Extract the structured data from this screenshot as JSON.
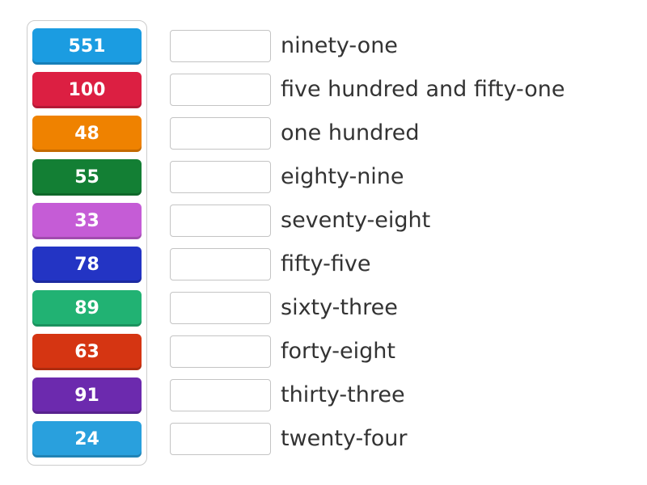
{
  "match_activity": {
    "colors": {
      "page_background": "#ffffff",
      "panel_border": "#cccccc",
      "dropbox_border": "#c4c4c4",
      "label_text": "#333333",
      "tile_text": "#ffffff"
    },
    "tiles": [
      {
        "value": "551",
        "color": "#1b9ce1"
      },
      {
        "value": "100",
        "color": "#dc1f42"
      },
      {
        "value": "48",
        "color": "#ef8200"
      },
      {
        "value": "55",
        "color": "#137f34"
      },
      {
        "value": "33",
        "color": "#c55cd6"
      },
      {
        "value": "78",
        "color": "#2334c4"
      },
      {
        "value": "89",
        "color": "#21b273"
      },
      {
        "value": "63",
        "color": "#d53512"
      },
      {
        "value": "91",
        "color": "#6c2aae"
      },
      {
        "value": "24",
        "color": "#29a0dd"
      }
    ],
    "labels": [
      "ninety-one",
      "five hundred and fifty-one",
      "one hundred",
      "eighty-nine",
      "seventy-eight",
      "fifty-five",
      "sixty-three",
      "forty-eight",
      "thirty-three",
      "twenty-four"
    ]
  }
}
